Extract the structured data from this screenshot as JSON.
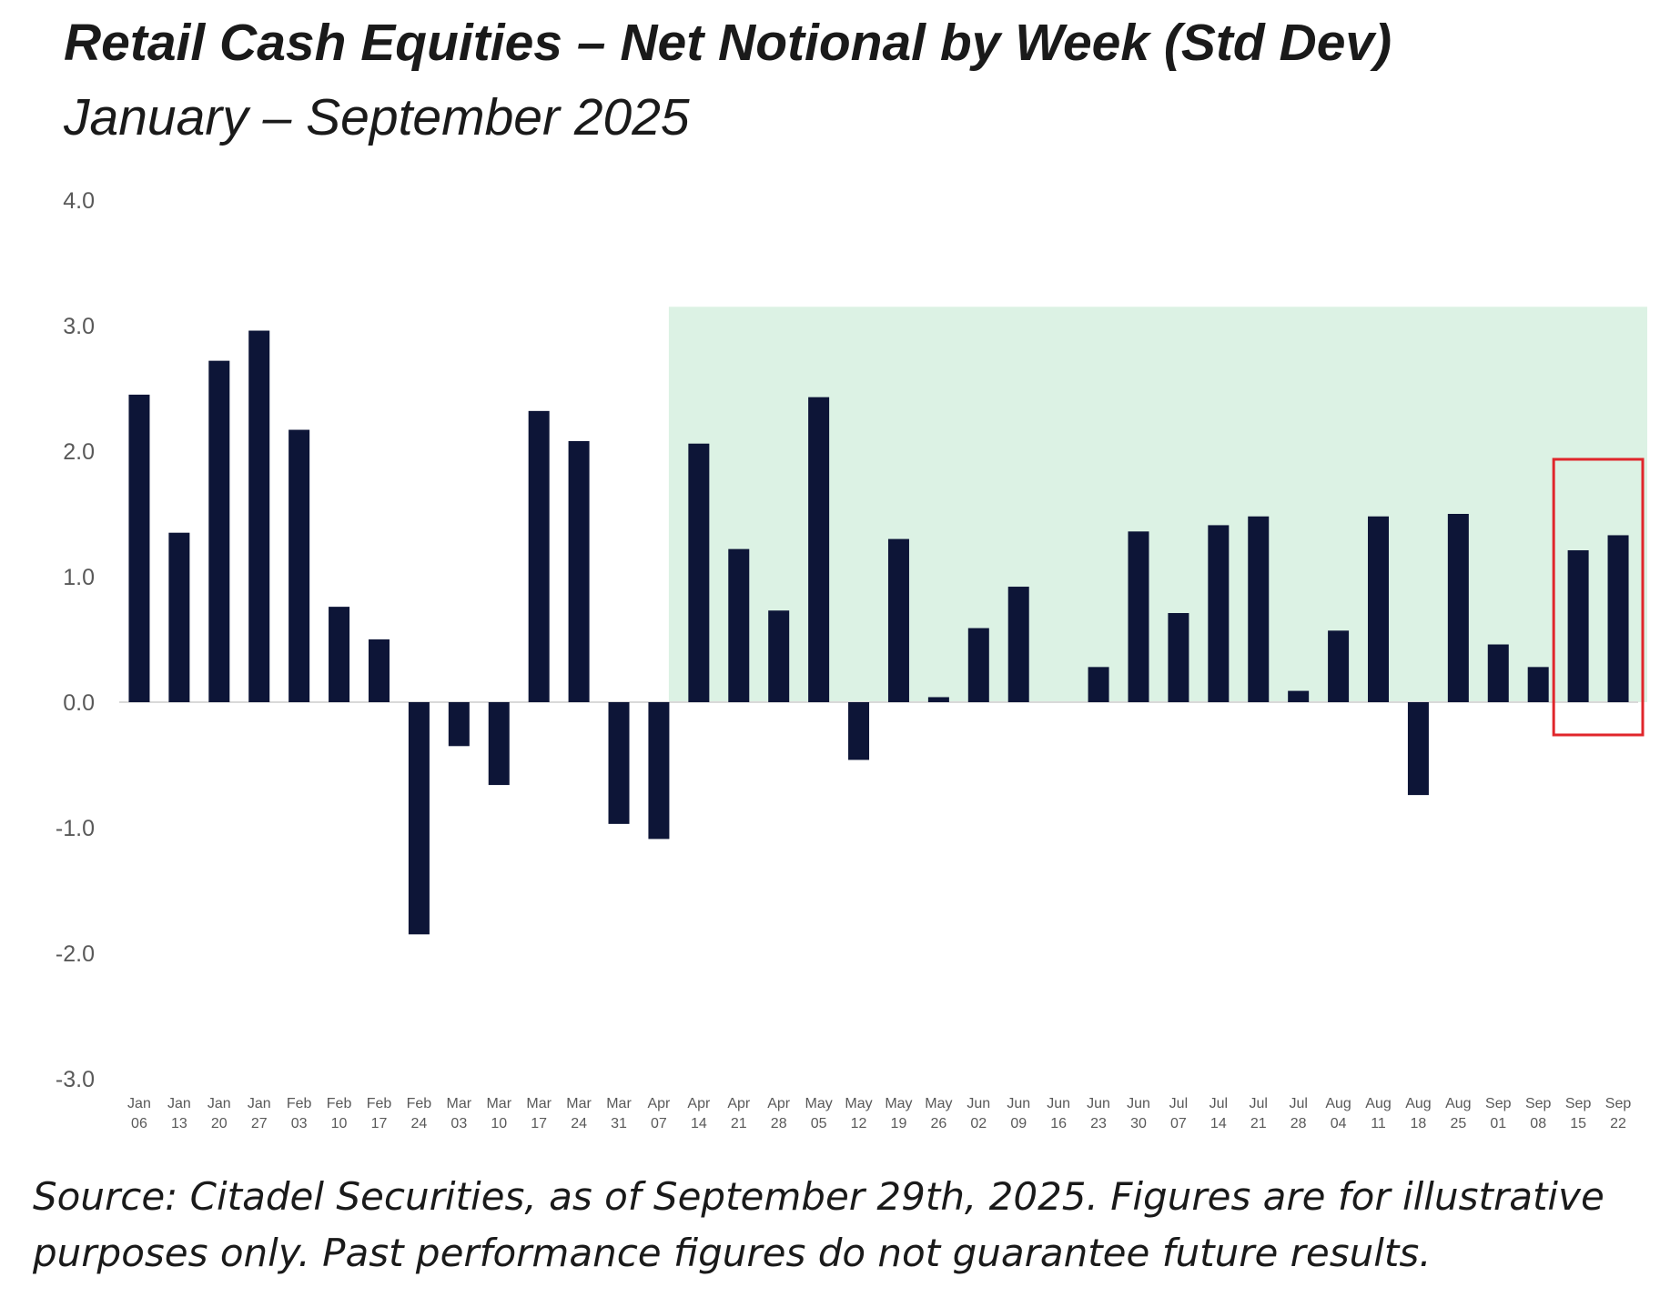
{
  "chart_data": {
    "type": "bar",
    "title": "Retail Cash Equities – Net Notional by Week (Std Dev)",
    "subtitle": "January – September 2025",
    "xlabel": "",
    "ylabel": "",
    "ylim": [
      -3.0,
      4.0
    ],
    "yticks": [
      "4.0",
      "3.0",
      "2.0",
      "1.0",
      "0.0",
      "-1.0",
      "-2.0",
      "-3.0"
    ],
    "categories": [
      [
        "Jan",
        "06"
      ],
      [
        "Jan",
        "13"
      ],
      [
        "Jan",
        "20"
      ],
      [
        "Jan",
        "27"
      ],
      [
        "Feb",
        "03"
      ],
      [
        "Feb",
        "10"
      ],
      [
        "Feb",
        "17"
      ],
      [
        "Feb",
        "24"
      ],
      [
        "Mar",
        "03"
      ],
      [
        "Mar",
        "10"
      ],
      [
        "Mar",
        "17"
      ],
      [
        "Mar",
        "24"
      ],
      [
        "Mar",
        "31"
      ],
      [
        "Apr",
        "07"
      ],
      [
        "Apr",
        "14"
      ],
      [
        "Apr",
        "21"
      ],
      [
        "Apr",
        "28"
      ],
      [
        "May",
        "05"
      ],
      [
        "May",
        "12"
      ],
      [
        "May",
        "19"
      ],
      [
        "May",
        "26"
      ],
      [
        "Jun",
        "02"
      ],
      [
        "Jun",
        "09"
      ],
      [
        "Jun",
        "16"
      ],
      [
        "Jun",
        "23"
      ],
      [
        "Jun",
        "30"
      ],
      [
        "Jul",
        "07"
      ],
      [
        "Jul",
        "14"
      ],
      [
        "Jul",
        "21"
      ],
      [
        "Jul",
        "28"
      ],
      [
        "Aug",
        "04"
      ],
      [
        "Aug",
        "11"
      ],
      [
        "Aug",
        "18"
      ],
      [
        "Aug",
        "25"
      ],
      [
        "Sep",
        "01"
      ],
      [
        "Sep",
        "08"
      ],
      [
        "Sep",
        "15"
      ],
      [
        "Sep",
        "22"
      ]
    ],
    "values": [
      2.45,
      1.35,
      2.72,
      2.96,
      2.17,
      0.76,
      0.5,
      -1.85,
      -0.35,
      -0.66,
      2.32,
      2.08,
      -0.97,
      -1.09,
      2.06,
      1.22,
      0.73,
      2.43,
      -0.46,
      1.3,
      0.04,
      0.59,
      0.92,
      0.0,
      0.28,
      1.36,
      0.71,
      1.41,
      1.48,
      0.09,
      0.57,
      1.48,
      -0.74,
      1.5,
      0.46,
      0.28,
      1.21,
      1.33
    ],
    "highlight": {
      "from": "Apr 14",
      "to": "Sep 22",
      "color": "#dcf2e4"
    },
    "callout": {
      "from": "Sep 15",
      "to": "Sep 22",
      "color": "#e0262b"
    },
    "bar_color": "#0d1537",
    "grid": false,
    "legend": "none"
  },
  "source_note": "Source: Citadel Securities, as of September 29th, 2025. Figures are for illustrative purposes only. Past performance figures do not guarantee future results."
}
